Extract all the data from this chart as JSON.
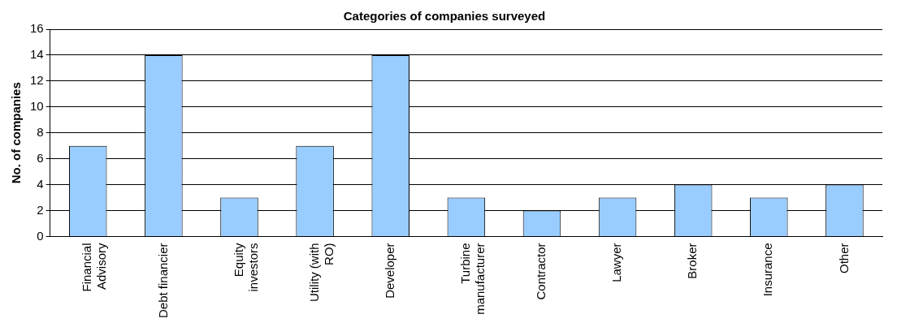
{
  "chart_data": {
    "type": "bar",
    "title": "Categories of companies surveyed",
    "ylabel": "No. of companies",
    "categories": [
      "Financial Advisory",
      "Debt financier",
      "Equity investors",
      "Utility (with RO)",
      "Developer",
      "Turbine manufacturer",
      "Contractor",
      "Lawyer",
      "Broker",
      "Insurance",
      "Other"
    ],
    "values": [
      7,
      14,
      3,
      7,
      14,
      3,
      2,
      3,
      4,
      3,
      4
    ],
    "color": "#99ccff",
    "ylim": [
      0,
      16
    ],
    "yticks": [
      0,
      2,
      4,
      6,
      8,
      10,
      12,
      14,
      16
    ],
    "grid": "y",
    "legend": false
  }
}
